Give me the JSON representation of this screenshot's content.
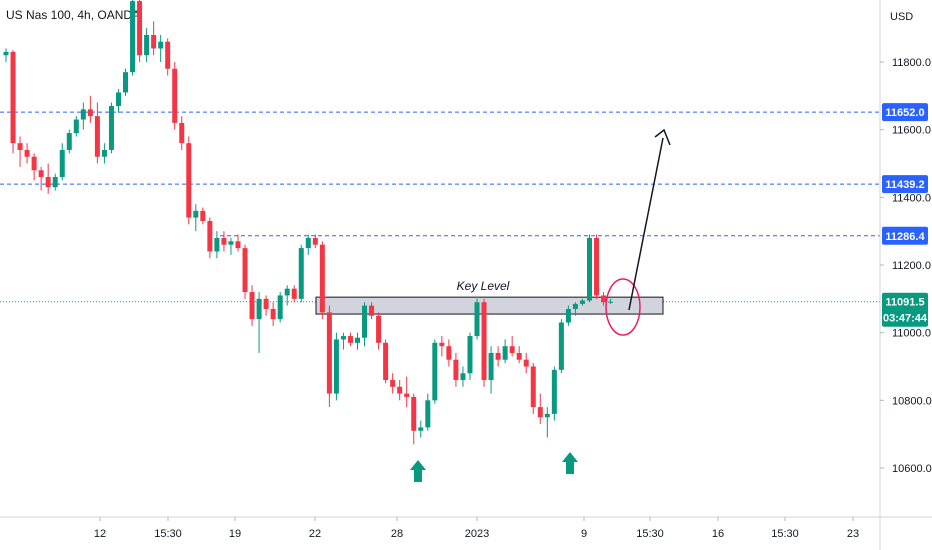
{
  "header": {
    "title": "US Nas 100, 4h, OANDA"
  },
  "chart_data": {
    "type": "candlestick",
    "currency_label": "USD",
    "y_ticks": [
      11800.0,
      11600.0,
      11400.0,
      11200.0,
      11000.0,
      10800.0,
      10600.0
    ],
    "y_tick_labels": [
      "11800.0",
      "11600.0",
      "11400.0",
      "11200.0",
      "11000.0",
      "10800.0",
      "10600.0"
    ],
    "x_tick_labels": [
      "12",
      "15:30",
      "19",
      "22",
      "28",
      "2023",
      "9",
      "15:30",
      "16",
      "15:30",
      "23"
    ],
    "horizontal_levels": [
      {
        "value": 11652.0,
        "label": "11652.0"
      },
      {
        "value": 11439.2,
        "label": "11439.2"
      },
      {
        "value": 11286.4,
        "label": "11286.4"
      }
    ],
    "current_price": {
      "value": 11091.5,
      "label": "11091.5",
      "countdown": "03:47:44"
    },
    "key_level": {
      "label": "Key Level",
      "low": 11055,
      "high": 11105
    },
    "colors": {
      "up": "#089981",
      "down": "#f23645",
      "level_line": "#2962ff",
      "current_line": "#089981",
      "zone_fill": "#d1d4dc",
      "circle": "#e91e63",
      "arrow": "#131722",
      "up_arrows": "#089981"
    },
    "annotations": [
      "circle-at-current-price",
      "arrow-up-projection",
      "up-arrow-left-low",
      "up-arrow-right-low"
    ],
    "candles": [
      {
        "o": 11820,
        "h": 11840,
        "l": 11800,
        "c": 11830
      },
      {
        "o": 11830,
        "h": 11835,
        "l": 11530,
        "c": 11560
      },
      {
        "o": 11560,
        "h": 11580,
        "l": 11490,
        "c": 11540
      },
      {
        "o": 11540,
        "h": 11560,
        "l": 11500,
        "c": 11520
      },
      {
        "o": 11520,
        "h": 11530,
        "l": 11450,
        "c": 11480
      },
      {
        "o": 11480,
        "h": 11490,
        "l": 11420,
        "c": 11460
      },
      {
        "o": 11460,
        "h": 11500,
        "l": 11410,
        "c": 11430
      },
      {
        "o": 11430,
        "h": 11470,
        "l": 11420,
        "c": 11460
      },
      {
        "o": 11460,
        "h": 11560,
        "l": 11450,
        "c": 11540
      },
      {
        "o": 11540,
        "h": 11600,
        "l": 11530,
        "c": 11590
      },
      {
        "o": 11590,
        "h": 11640,
        "l": 11580,
        "c": 11630
      },
      {
        "o": 11630,
        "h": 11680,
        "l": 11600,
        "c": 11660
      },
      {
        "o": 11660,
        "h": 11700,
        "l": 11620,
        "c": 11640
      },
      {
        "o": 11640,
        "h": 11680,
        "l": 11500,
        "c": 11520
      },
      {
        "o": 11520,
        "h": 11560,
        "l": 11500,
        "c": 11540
      },
      {
        "o": 11540,
        "h": 11680,
        "l": 11530,
        "c": 11670
      },
      {
        "o": 11670,
        "h": 11720,
        "l": 11650,
        "c": 11710
      },
      {
        "o": 11710,
        "h": 11780,
        "l": 11700,
        "c": 11770
      },
      {
        "o": 11770,
        "h": 12000,
        "l": 11760,
        "c": 11980
      },
      {
        "o": 11980,
        "h": 12000,
        "l": 11800,
        "c": 11820
      },
      {
        "o": 11820,
        "h": 11900,
        "l": 11800,
        "c": 11880
      },
      {
        "o": 11880,
        "h": 11920,
        "l": 11820,
        "c": 11840
      },
      {
        "o": 11840,
        "h": 11880,
        "l": 11800,
        "c": 11860
      },
      {
        "o": 11860,
        "h": 11870,
        "l": 11760,
        "c": 11780
      },
      {
        "o": 11780,
        "h": 11800,
        "l": 11600,
        "c": 11620
      },
      {
        "o": 11620,
        "h": 11640,
        "l": 11540,
        "c": 11560
      },
      {
        "o": 11560,
        "h": 11580,
        "l": 11320,
        "c": 11340
      },
      {
        "o": 11340,
        "h": 11380,
        "l": 11300,
        "c": 11360
      },
      {
        "o": 11360,
        "h": 11370,
        "l": 11320,
        "c": 11330
      },
      {
        "o": 11330,
        "h": 11340,
        "l": 11220,
        "c": 11240
      },
      {
        "o": 11240,
        "h": 11300,
        "l": 11220,
        "c": 11280
      },
      {
        "o": 11280,
        "h": 11300,
        "l": 11240,
        "c": 11260
      },
      {
        "o": 11260,
        "h": 11280,
        "l": 11230,
        "c": 11270
      },
      {
        "o": 11270,
        "h": 11290,
        "l": 11240,
        "c": 11250
      },
      {
        "o": 11250,
        "h": 11260,
        "l": 11100,
        "c": 11120
      },
      {
        "o": 11120,
        "h": 11140,
        "l": 11020,
        "c": 11040
      },
      {
        "o": 11040,
        "h": 11120,
        "l": 10940,
        "c": 11100
      },
      {
        "o": 11100,
        "h": 11110,
        "l": 11050,
        "c": 11070
      },
      {
        "o": 11070,
        "h": 11090,
        "l": 11020,
        "c": 11040
      },
      {
        "o": 11040,
        "h": 11120,
        "l": 11030,
        "c": 11110
      },
      {
        "o": 11110,
        "h": 11140,
        "l": 11080,
        "c": 11130
      },
      {
        "o": 11130,
        "h": 11140,
        "l": 11090,
        "c": 11100
      },
      {
        "o": 11100,
        "h": 11260,
        "l": 11090,
        "c": 11250
      },
      {
        "o": 11250,
        "h": 11290,
        "l": 11230,
        "c": 11280
      },
      {
        "o": 11280,
        "h": 11290,
        "l": 11250,
        "c": 11260
      },
      {
        "o": 11260,
        "h": 11270,
        "l": 11040,
        "c": 11060
      },
      {
        "o": 11060,
        "h": 11080,
        "l": 10780,
        "c": 10820
      },
      {
        "o": 10820,
        "h": 11000,
        "l": 10800,
        "c": 10980
      },
      {
        "o": 10980,
        "h": 11000,
        "l": 10950,
        "c": 10990
      },
      {
        "o": 10990,
        "h": 11000,
        "l": 10960,
        "c": 10970
      },
      {
        "o": 10970,
        "h": 11000,
        "l": 10950,
        "c": 10985
      },
      {
        "o": 10985,
        "h": 11090,
        "l": 10960,
        "c": 11080
      },
      {
        "o": 11080,
        "h": 11090,
        "l": 11040,
        "c": 11050
      },
      {
        "o": 11050,
        "h": 11060,
        "l": 10950,
        "c": 10970
      },
      {
        "o": 10970,
        "h": 10980,
        "l": 10850,
        "c": 10860
      },
      {
        "o": 10860,
        "h": 10880,
        "l": 10820,
        "c": 10840
      },
      {
        "o": 10840,
        "h": 10860,
        "l": 10800,
        "c": 10820
      },
      {
        "o": 10820,
        "h": 10870,
        "l": 10780,
        "c": 10810
      },
      {
        "o": 10810,
        "h": 10820,
        "l": 10670,
        "c": 10710
      },
      {
        "o": 10710,
        "h": 10740,
        "l": 10690,
        "c": 10720
      },
      {
        "o": 10720,
        "h": 10820,
        "l": 10710,
        "c": 10800
      },
      {
        "o": 10800,
        "h": 10980,
        "l": 10790,
        "c": 10970
      },
      {
        "o": 10970,
        "h": 10990,
        "l": 10930,
        "c": 10960
      },
      {
        "o": 10960,
        "h": 10980,
        "l": 10900,
        "c": 10920
      },
      {
        "o": 10920,
        "h": 10940,
        "l": 10840,
        "c": 10860
      },
      {
        "o": 10860,
        "h": 10900,
        "l": 10840,
        "c": 10880
      },
      {
        "o": 10880,
        "h": 11000,
        "l": 10860,
        "c": 10990
      },
      {
        "o": 10990,
        "h": 11100,
        "l": 10980,
        "c": 11090
      },
      {
        "o": 11090,
        "h": 11100,
        "l": 10840,
        "c": 10860
      },
      {
        "o": 10860,
        "h": 10960,
        "l": 10820,
        "c": 10940
      },
      {
        "o": 10940,
        "h": 10960,
        "l": 10900,
        "c": 10920
      },
      {
        "o": 10920,
        "h": 10980,
        "l": 10910,
        "c": 10960
      },
      {
        "o": 10960,
        "h": 10990,
        "l": 10930,
        "c": 10940
      },
      {
        "o": 10940,
        "h": 10960,
        "l": 10910,
        "c": 10920
      },
      {
        "o": 10920,
        "h": 10940,
        "l": 10880,
        "c": 10900
      },
      {
        "o": 10900,
        "h": 10910,
        "l": 10760,
        "c": 10780
      },
      {
        "o": 10780,
        "h": 10820,
        "l": 10730,
        "c": 10750
      },
      {
        "o": 10750,
        "h": 10780,
        "l": 10690,
        "c": 10760
      },
      {
        "o": 10760,
        "h": 10900,
        "l": 10740,
        "c": 10890
      },
      {
        "o": 10890,
        "h": 11040,
        "l": 10880,
        "c": 11030
      },
      {
        "o": 11030,
        "h": 11080,
        "l": 11020,
        "c": 11070
      },
      {
        "o": 11070,
        "h": 11090,
        "l": 11050,
        "c": 11085
      },
      {
        "o": 11085,
        "h": 11100,
        "l": 11080,
        "c": 11095
      },
      {
        "o": 11095,
        "h": 11290,
        "l": 11090,
        "c": 11280
      },
      {
        "o": 11280,
        "h": 11290,
        "l": 11100,
        "c": 11110
      },
      {
        "o": 11110,
        "h": 11120,
        "l": 11080,
        "c": 11090
      },
      {
        "o": 11090,
        "h": 11100,
        "l": 11085,
        "c": 11091.5
      }
    ]
  }
}
